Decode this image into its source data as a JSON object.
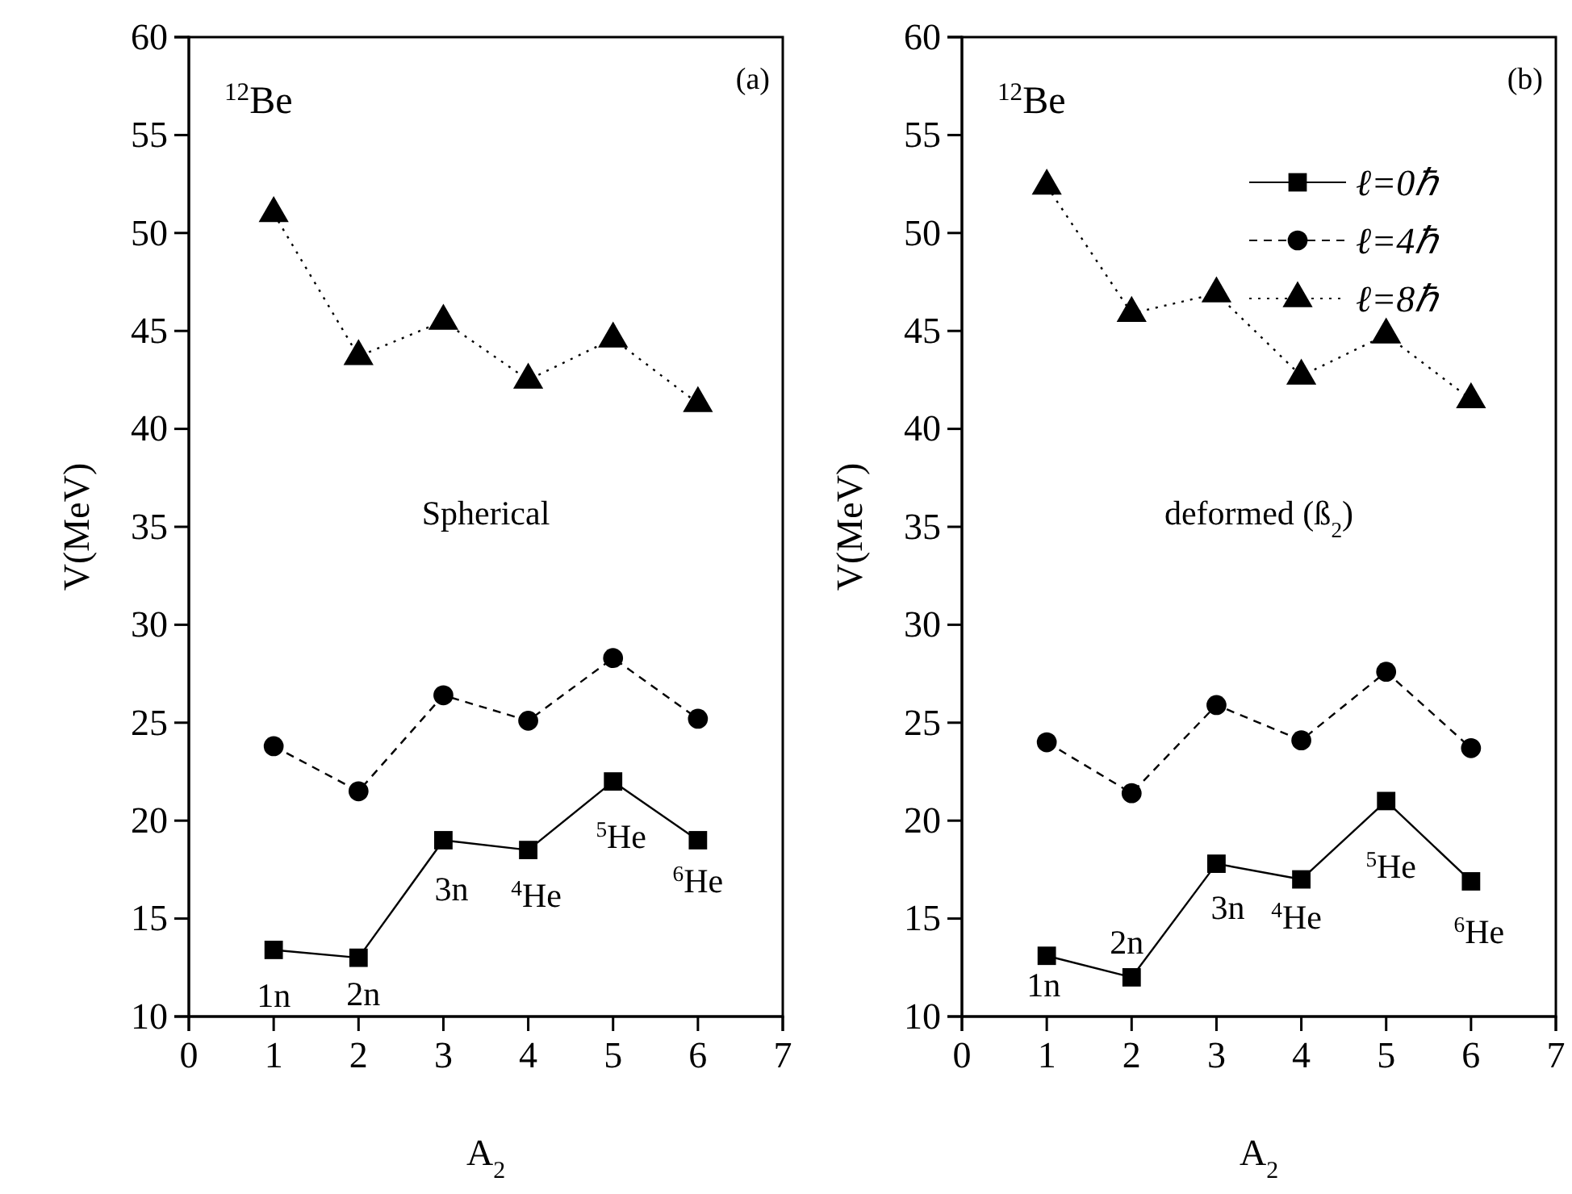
{
  "chart_data": [
    {
      "type": "line",
      "xlabel": "A$_{2}$",
      "ylabel": "V(MeV)",
      "x": [
        1,
        2,
        3,
        4,
        5,
        6
      ],
      "xlim": [
        0,
        7
      ],
      "xticks": [
        0,
        1,
        2,
        3,
        4,
        5,
        6,
        7
      ],
      "ylim": [
        10,
        60
      ],
      "yticks": [
        10,
        15,
        20,
        25,
        30,
        35,
        40,
        45,
        50,
        55,
        60
      ],
      "grid": false,
      "legend": false,
      "series": [
        {
          "color": "#000000",
          "marker": "square",
          "line_style": "solid",
          "values": [
            13.4,
            13.0,
            19.0,
            18.5,
            22.0,
            19.0
          ]
        },
        {
          "color": "#000000",
          "marker": "circle",
          "line_style": "dashed",
          "values": [
            23.8,
            21.5,
            26.4,
            25.1,
            28.3,
            25.2
          ]
        },
        {
          "color": "#000000",
          "marker": "triangle",
          "line_style": "dotted",
          "values": [
            51.0,
            43.7,
            45.5,
            42.5,
            44.6,
            41.3
          ]
        }
      ],
      "annotations": [
        "$^{12}$Be",
        "(a)",
        "Spherical",
        {
          "text": "1n",
          "x": 1,
          "y": 13.4
        },
        {
          "text": "2n",
          "x": 2,
          "y": 13.0
        },
        {
          "text": "3n",
          "x": 3,
          "y": 19.0
        },
        {
          "text": "$^{4}$He",
          "x": 4,
          "y": 18.5
        },
        {
          "text": "$^{5}$He",
          "x": 5,
          "y": 22.0
        },
        {
          "text": "$^{6}$He",
          "x": 6,
          "y": 19.0
        }
      ]
    },
    {
      "type": "line",
      "xlabel": "A$_{2}$",
      "ylabel": "V(MeV)",
      "x": [
        1,
        2,
        3,
        4,
        5,
        6
      ],
      "xlim": [
        0,
        7
      ],
      "xticks": [
        0,
        1,
        2,
        3,
        4,
        5,
        6,
        7
      ],
      "ylim": [
        10,
        60
      ],
      "yticks": [
        10,
        15,
        20,
        25,
        30,
        35,
        40,
        45,
        50,
        55,
        60
      ],
      "grid": false,
      "legend": "top right",
      "series": [
        {
          "name": "ℓ=0ℏ",
          "color": "#000000",
          "marker": "square",
          "line_style": "solid",
          "values": [
            13.1,
            12.0,
            17.8,
            17.0,
            21.0,
            16.9
          ]
        },
        {
          "name": "ℓ=4ℏ",
          "color": "#000000",
          "marker": "circle",
          "line_style": "dashed",
          "values": [
            24.0,
            21.4,
            25.9,
            24.1,
            27.6,
            23.7
          ]
        },
        {
          "name": "ℓ=8ℏ",
          "color": "#000000",
          "marker": "triangle",
          "line_style": "dotted",
          "values": [
            52.4,
            45.9,
            46.9,
            42.7,
            44.8,
            41.5
          ]
        }
      ],
      "annotations": [
        "$^{12}$Be",
        "(b)",
        "deformed (ß$_{2}$)",
        {
          "text": "1n",
          "x": 1,
          "y": 13.1
        },
        {
          "text": "2n",
          "x": 2,
          "y": 12.0
        },
        {
          "text": "3n",
          "x": 3,
          "y": 17.8
        },
        {
          "text": "$^{4}$He",
          "x": 4,
          "y": 17.0
        },
        {
          "text": "$^{5}$He",
          "x": 5,
          "y": 21.0
        },
        {
          "text": "$^{6}$He",
          "x": 6,
          "y": 16.9
        }
      ]
    }
  ]
}
